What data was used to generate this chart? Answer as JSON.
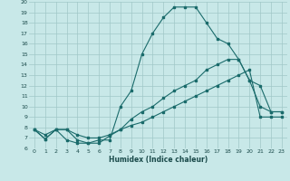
{
  "xlabel": "Humidex (Indice chaleur)",
  "bg_color": "#c8e8e8",
  "grid_color": "#a0c8c8",
  "line_color": "#1a6b6b",
  "xlim": [
    -0.5,
    23.5
  ],
  "ylim": [
    6,
    20
  ],
  "xticks": [
    0,
    1,
    2,
    3,
    4,
    5,
    6,
    7,
    8,
    9,
    10,
    11,
    12,
    13,
    14,
    15,
    16,
    17,
    18,
    19,
    20,
    21,
    22,
    23
  ],
  "yticks": [
    6,
    7,
    8,
    9,
    10,
    11,
    12,
    13,
    14,
    15,
    16,
    17,
    18,
    19,
    20
  ],
  "line1_x": [
    0,
    1,
    2,
    3,
    4,
    5,
    6,
    7,
    8,
    9,
    10,
    11,
    12,
    13,
    14,
    15,
    16,
    17,
    18,
    19,
    20,
    21,
    22,
    23
  ],
  "line1_y": [
    7.8,
    6.9,
    7.8,
    6.8,
    6.5,
    6.5,
    6.8,
    6.8,
    10,
    11.5,
    15,
    17,
    18.5,
    19.5,
    19.5,
    19.5,
    18,
    16.5,
    16,
    14.5,
    12.5,
    12,
    9.5,
    9.5
  ],
  "line2_x": [
    0,
    1,
    2,
    3,
    4,
    5,
    6,
    7,
    8,
    9,
    10,
    11,
    12,
    13,
    14,
    15,
    16,
    17,
    18,
    19,
    20,
    21,
    22,
    23
  ],
  "line2_y": [
    7.8,
    6.9,
    7.8,
    7.8,
    6.8,
    6.5,
    6.5,
    7.2,
    7.8,
    8.8,
    9.5,
    10,
    10.8,
    11.5,
    12,
    12.5,
    13.5,
    14,
    14.5,
    14.5,
    12.5,
    10,
    9.5,
    9.5
  ],
  "line3_x": [
    0,
    1,
    2,
    3,
    4,
    5,
    6,
    7,
    8,
    9,
    10,
    11,
    12,
    13,
    14,
    15,
    16,
    17,
    18,
    19,
    20,
    21,
    22,
    23
  ],
  "line3_y": [
    7.8,
    7.3,
    7.8,
    7.8,
    7.3,
    7.0,
    7.0,
    7.3,
    7.8,
    8.2,
    8.5,
    9.0,
    9.5,
    10,
    10.5,
    11,
    11.5,
    12,
    12.5,
    13,
    13.5,
    9.0,
    9.0,
    9.0
  ]
}
